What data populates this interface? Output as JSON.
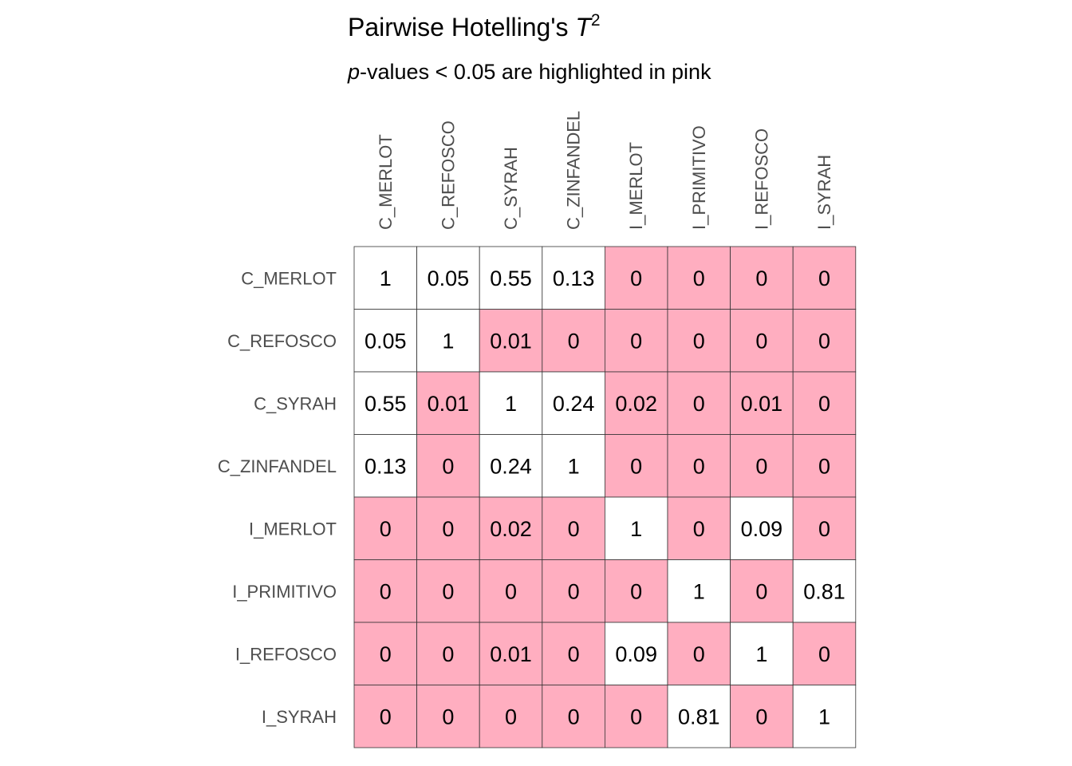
{
  "chart_data": {
    "type": "heatmap",
    "title_prefix": "Pairwise Hotelling's ",
    "title_symbol": "T",
    "title_superscript": "2",
    "subtitle_symbol": "p",
    "subtitle_rest": "-values < 0.05 are highlighted in pink",
    "threshold": 0.05,
    "colors": {
      "significant": "#ffaec0",
      "not_significant": "#ffffff",
      "grid": "#333333",
      "axis_text": "#4d4d4d"
    },
    "rows": [
      "C_MERLOT",
      "C_REFOSCO",
      "C_SYRAH",
      "C_ZINFANDEL",
      "I_MERLOT",
      "I_PRIMITIVO",
      "I_REFOSCO",
      "I_SYRAH"
    ],
    "columns": [
      "C_MERLOT",
      "C_REFOSCO",
      "C_SYRAH",
      "C_ZINFANDEL",
      "I_MERLOT",
      "I_PRIMITIVO",
      "I_REFOSCO",
      "I_SYRAH"
    ],
    "values": [
      [
        1,
        0.05,
        0.55,
        0.13,
        0,
        0,
        0,
        0
      ],
      [
        0.05,
        1,
        0.01,
        0,
        0,
        0,
        0,
        0
      ],
      [
        0.55,
        0.01,
        1,
        0.24,
        0.02,
        0,
        0.01,
        0
      ],
      [
        0.13,
        0,
        0.24,
        1,
        0,
        0,
        0,
        0
      ],
      [
        0,
        0,
        0.02,
        0,
        1,
        0,
        0.09,
        0
      ],
      [
        0,
        0,
        0,
        0,
        0,
        1,
        0,
        0.81
      ],
      [
        0,
        0,
        0.01,
        0,
        0.09,
        0,
        1,
        0
      ],
      [
        0,
        0,
        0,
        0,
        0,
        0.81,
        0,
        1
      ]
    ]
  }
}
